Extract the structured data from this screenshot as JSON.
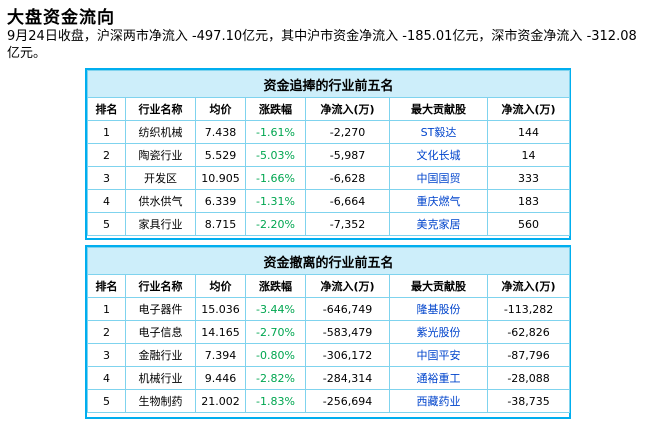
{
  "page": {
    "title": "大盘资金流向",
    "summary": "9月24日收盘，沪深两市净流入 -497.10亿元，其中沪市资金净流入 -185.01亿元，深市资金净流入 -312.08亿元。"
  },
  "columns": [
    "排名",
    "行业名称",
    "均价",
    "涨跌幅",
    "净流入(万)",
    "最大贡献股",
    "净流入(万)"
  ],
  "inflow_table": {
    "caption": "资金追捧的行业前五名",
    "rows": [
      {
        "rank": "1",
        "industry": "纺织机械",
        "price": "7.438",
        "change": "-1.61%",
        "inflow": "-2,270",
        "top_stock": "ST毅达",
        "stock_inflow": "144"
      },
      {
        "rank": "2",
        "industry": "陶瓷行业",
        "price": "5.529",
        "change": "-5.03%",
        "inflow": "-5,987",
        "top_stock": "文化长城",
        "stock_inflow": "14"
      },
      {
        "rank": "3",
        "industry": "开发区",
        "price": "10.905",
        "change": "-1.66%",
        "inflow": "-6,628",
        "top_stock": "中国国贸",
        "stock_inflow": "333"
      },
      {
        "rank": "4",
        "industry": "供水供气",
        "price": "6.339",
        "change": "-1.31%",
        "inflow": "-6,664",
        "top_stock": "重庆燃气",
        "stock_inflow": "183"
      },
      {
        "rank": "5",
        "industry": "家具行业",
        "price": "8.715",
        "change": "-2.20%",
        "inflow": "-7,352",
        "top_stock": "美克家居",
        "stock_inflow": "560"
      }
    ]
  },
  "outflow_table": {
    "caption": "资金撤离的行业前五名",
    "rows": [
      {
        "rank": "1",
        "industry": "电子器件",
        "price": "15.036",
        "change": "-3.44%",
        "inflow": "-646,749",
        "top_stock": "隆基股份",
        "stock_inflow": "-113,282"
      },
      {
        "rank": "2",
        "industry": "电子信息",
        "price": "14.165",
        "change": "-2.70%",
        "inflow": "-583,479",
        "top_stock": "紫光股份",
        "stock_inflow": "-62,826"
      },
      {
        "rank": "3",
        "industry": "金融行业",
        "price": "7.394",
        "change": "-0.80%",
        "inflow": "-306,172",
        "top_stock": "中国平安",
        "stock_inflow": "-87,796"
      },
      {
        "rank": "4",
        "industry": "机械行业",
        "price": "9.446",
        "change": "-2.82%",
        "inflow": "-284,314",
        "top_stock": "通裕重工",
        "stock_inflow": "-28,088"
      },
      {
        "rank": "5",
        "industry": "生物制药",
        "price": "21.002",
        "change": "-1.83%",
        "inflow": "-256,694",
        "top_stock": "西藏药业",
        "stock_inflow": "-38,735"
      }
    ]
  },
  "colors": {
    "border": "#00aeef",
    "caption_bg": "#cdeefa",
    "change_text": "#00a650",
    "stock_link": "#0044cc"
  }
}
